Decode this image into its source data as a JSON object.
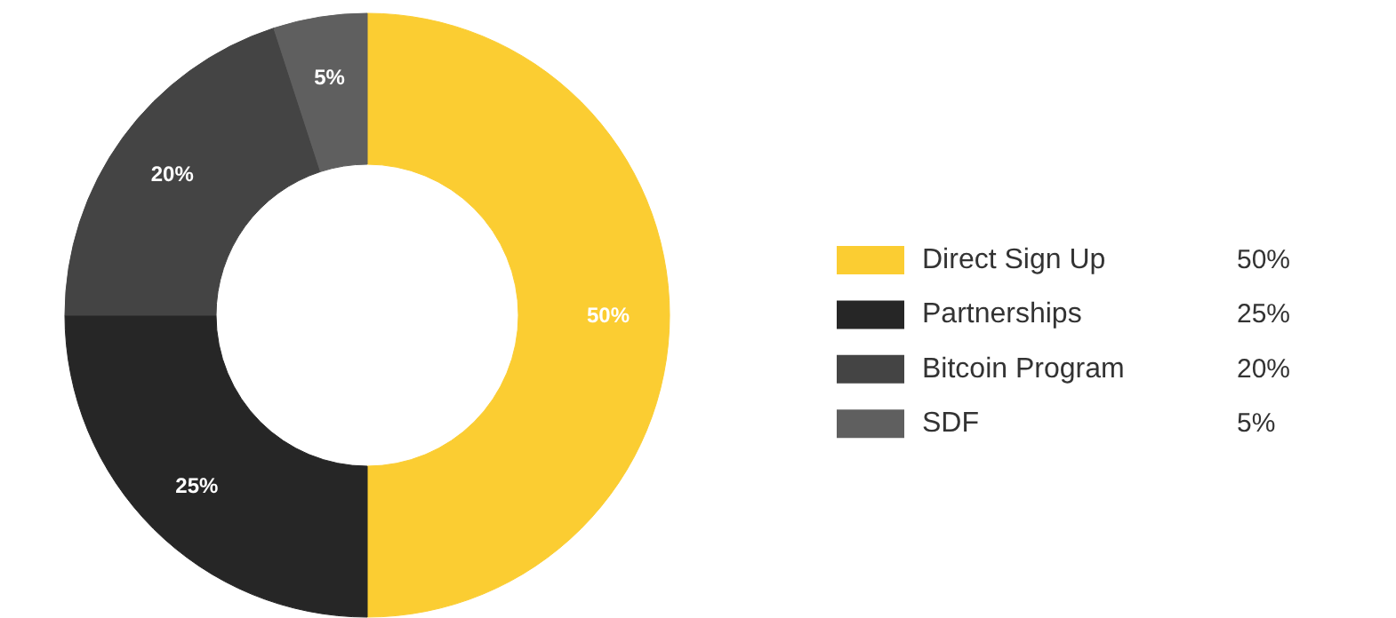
{
  "chart_data": {
    "type": "donut",
    "categories": [
      "Direct Sign Up",
      "Partnerships",
      "Bitcoin Program",
      "SDF"
    ],
    "values": [
      50,
      25,
      20,
      5
    ],
    "value_labels": [
      "50%",
      "25%",
      "20%",
      "5%"
    ],
    "colors": [
      "#fbcd32",
      "#262626",
      "#444444",
      "#5f5f5f"
    ],
    "legend": "right"
  }
}
